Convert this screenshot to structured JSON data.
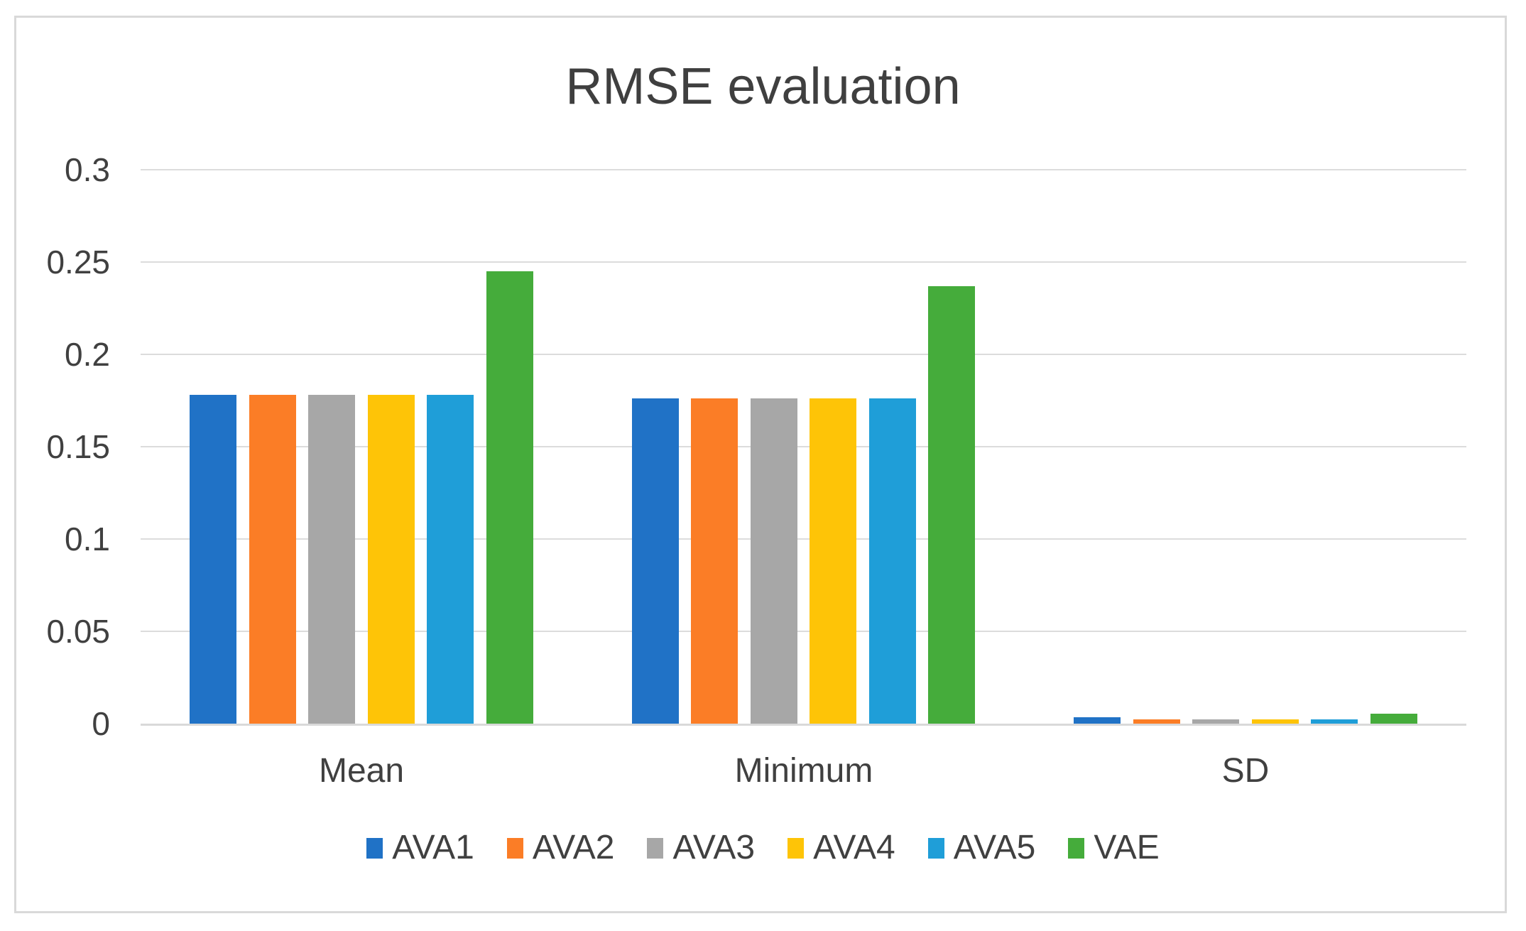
{
  "chart_data": {
    "type": "bar",
    "title": "RMSE evaluation",
    "categories": [
      "Mean",
      "Minimum",
      "SD"
    ],
    "series": [
      {
        "name": "AVA1",
        "color": "#2072C6",
        "values": [
          0.178,
          0.176,
          0.0036
        ]
      },
      {
        "name": "AVA2",
        "color": "#FB7D26",
        "values": [
          0.178,
          0.176,
          0.0023
        ]
      },
      {
        "name": "AVA3",
        "color": "#A7A7A7",
        "values": [
          0.178,
          0.176,
          0.0022
        ]
      },
      {
        "name": "AVA4",
        "color": "#FEC407",
        "values": [
          0.178,
          0.176,
          0.0024
        ]
      },
      {
        "name": "AVA5",
        "color": "#1F9ED8",
        "values": [
          0.178,
          0.176,
          0.0022
        ]
      },
      {
        "name": "VAE",
        "color": "#45AC3B",
        "values": [
          0.245,
          0.237,
          0.0054
        ]
      }
    ],
    "xlabel": "",
    "ylabel": "",
    "ylim": [
      0,
      0.3
    ],
    "yticks": [
      0,
      0.05,
      0.1,
      0.15,
      0.2,
      0.25,
      0.3
    ],
    "ytick_labels": [
      "0",
      "0.05",
      "0.1",
      "0.15",
      "0.2",
      "0.25",
      "0.3"
    ],
    "grid": true,
    "legend_position": "bottom",
    "colors": {
      "background": "#FFFFFF",
      "border": "#D9D9D9",
      "gridline": "#DCDCDC",
      "axis_line": "#D9D9D9",
      "text": "#404040",
      "title_text": "#3F3F3F"
    }
  }
}
